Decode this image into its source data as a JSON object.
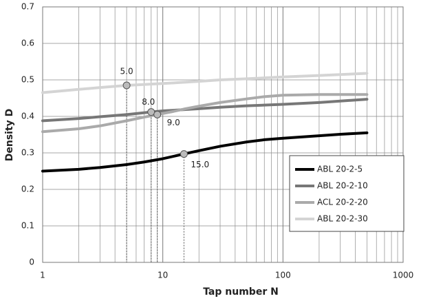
{
  "chart_data": {
    "type": "line",
    "x_label": "Tap number N",
    "y_label": "Density D",
    "log_x": true,
    "grid": true,
    "xlim": [
      1,
      1000
    ],
    "xticks": [
      1,
      10,
      100,
      1000
    ],
    "xminor": [
      2,
      3,
      4,
      5,
      6,
      7,
      8,
      9,
      20,
      30,
      40,
      50,
      60,
      70,
      80,
      90,
      200,
      300,
      400,
      500,
      600,
      700,
      800,
      900
    ],
    "ylim": [
      0,
      0.7
    ],
    "yticks": [
      0,
      0.1,
      0.2,
      0.3,
      0.4,
      0.5,
      0.6,
      0.7
    ],
    "legend_position": "right",
    "series": [
      {
        "name": "ABL 20-2-5",
        "color": "#000000",
        "x": [
          1,
          2,
          3,
          5,
          7,
          10,
          15,
          20,
          30,
          50,
          70,
          100,
          200,
          300,
          500
        ],
        "values": [
          0.25,
          0.255,
          0.26,
          0.268,
          0.275,
          0.284,
          0.297,
          0.306,
          0.318,
          0.33,
          0.336,
          0.34,
          0.347,
          0.351,
          0.355
        ]
      },
      {
        "name": "ABL 20-2-10",
        "color": "#777777",
        "x": [
          1,
          2,
          3,
          5,
          8,
          10,
          20,
          30,
          50,
          100,
          200,
          300,
          500
        ],
        "values": [
          0.388,
          0.394,
          0.399,
          0.405,
          0.412,
          0.415,
          0.421,
          0.425,
          0.429,
          0.433,
          0.438,
          0.442,
          0.447
        ]
      },
      {
        "name": "ACL 20-2-20",
        "color": "#aaaaaa",
        "x": [
          1,
          2,
          3,
          5,
          7,
          9,
          12,
          15,
          20,
          30,
          50,
          70,
          100,
          200,
          500
        ],
        "values": [
          0.358,
          0.366,
          0.374,
          0.388,
          0.398,
          0.405,
          0.413,
          0.42,
          0.428,
          0.438,
          0.448,
          0.454,
          0.458,
          0.46,
          0.46
        ]
      },
      {
        "name": "ABL 20-2-30",
        "color": "#d4d4d4",
        "x": [
          1,
          2,
          3,
          5,
          10,
          20,
          30,
          50,
          100,
          200,
          500
        ],
        "values": [
          0.465,
          0.474,
          0.479,
          0.485,
          0.49,
          0.496,
          0.5,
          0.503,
          0.508,
          0.512,
          0.518
        ]
      }
    ],
    "annotations": [
      {
        "x": 5,
        "y": 0.485,
        "text": "5.0"
      },
      {
        "x": 8,
        "y": 0.412,
        "text": "8.0"
      },
      {
        "x": 9,
        "y": 0.405,
        "text": "9.0"
      },
      {
        "x": 15,
        "y": 0.297,
        "text": "15.0"
      }
    ]
  }
}
